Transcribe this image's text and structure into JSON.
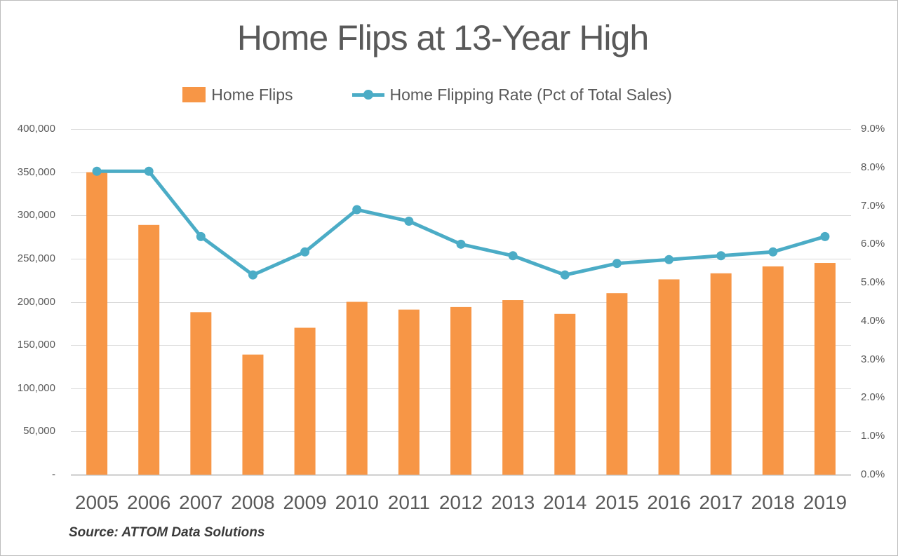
{
  "chart": {
    "title": "Home Flips at 13-Year High",
    "legend": {
      "bars_label": "Home Flips",
      "line_label": "Home Flipping Rate (Pct of Total Sales)"
    },
    "source": "Source: ATTOM Data Solutions"
  },
  "colors": {
    "bar": "#F79646",
    "line": "#4BACC6",
    "grid": "#D9D9D9",
    "axis_line": "#C6C6C6",
    "text": "#595959",
    "title": "#595959",
    "source": "#3A3A3A",
    "border": "#BDBDBD"
  },
  "left_axis": {
    "tick_labels": [
      "400,000",
      "350,000",
      "300,000",
      "250,000",
      "200,000",
      "150,000",
      "100,000",
      "50,000",
      "-"
    ],
    "min": 0,
    "max": 400000
  },
  "right_axis": {
    "tick_labels": [
      "9.0%",
      "8.0%",
      "7.0%",
      "6.0%",
      "5.0%",
      "4.0%",
      "3.0%",
      "2.0%",
      "1.0%",
      "0.0%"
    ],
    "min": 0,
    "max": 9
  },
  "chart_data": {
    "type": "bar",
    "title": "Home Flips at 13-Year High",
    "categories": [
      "2005",
      "2006",
      "2007",
      "2008",
      "2009",
      "2010",
      "2011",
      "2012",
      "2013",
      "2014",
      "2015",
      "2016",
      "2017",
      "2018",
      "2019"
    ],
    "series": [
      {
        "name": "Home Flips",
        "type": "bar",
        "axis": "left",
        "values": [
          350000,
          289000,
          188000,
          139000,
          170000,
          200000,
          191000,
          194000,
          202000,
          186000,
          210000,
          226000,
          233000,
          241000,
          245000
        ]
      },
      {
        "name": "Home Flipping Rate (Pct of Total Sales)",
        "type": "line",
        "axis": "right",
        "values": [
          7.9,
          7.9,
          6.2,
          5.2,
          5.8,
          6.9,
          6.6,
          6.0,
          5.7,
          5.2,
          5.5,
          5.6,
          5.7,
          5.8,
          6.2
        ]
      }
    ],
    "xlabel": "",
    "ylabel_left": "",
    "ylabel_right": "",
    "left_ylim": [
      0,
      400000
    ],
    "right_ylim": [
      0,
      9
    ],
    "grid": true,
    "legend_position": "top"
  }
}
